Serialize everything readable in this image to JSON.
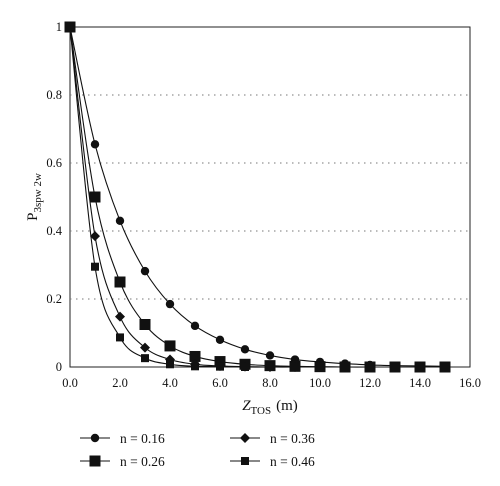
{
  "chart_data": {
    "type": "line",
    "title": "",
    "xlabel": {
      "main": "Z",
      "sub": "TOS",
      "unit": "(m)"
    },
    "ylabel": {
      "main": "P",
      "sub": "3spw 2w"
    },
    "xlim": [
      0,
      16
    ],
    "ylim": [
      0,
      1
    ],
    "x_ticks": [
      0,
      2,
      4,
      6,
      8,
      10,
      12,
      14,
      16
    ],
    "x_tick_labels": [
      "0.0",
      "2.0",
      "4.0",
      "6.0",
      "8.0",
      "10.0",
      "12.0",
      "14.0",
      "16.0"
    ],
    "y_ticks": [
      0,
      0.2,
      0.4,
      0.6,
      0.8,
      1
    ],
    "y_tick_labels": [
      "0",
      "0.2",
      "0.4",
      "0.6",
      "0.8",
      "1"
    ],
    "grid": "horizontal dotted",
    "legend_placement": "bottom",
    "series": [
      {
        "name": "n = 0.16",
        "marker": "circle",
        "x": [
          0,
          1,
          2,
          3,
          4,
          5,
          6,
          7,
          8,
          9,
          10,
          11,
          12,
          13,
          14,
          15
        ],
        "y": [
          1,
          0.655,
          0.43,
          0.282,
          0.185,
          0.121,
          0.08,
          0.052,
          0.034,
          0.022,
          0.015,
          0.01,
          0.006,
          0.004,
          0.003,
          0.002
        ]
      },
      {
        "name": "n = 0.26",
        "marker": "square-large",
        "x": [
          0,
          1,
          2,
          3,
          4,
          5,
          6,
          7,
          8,
          9,
          10,
          11,
          12,
          13,
          14,
          15
        ],
        "y": [
          1,
          0.5,
          0.25,
          0.125,
          0.062,
          0.031,
          0.016,
          0.008,
          0.004,
          0.002,
          0.001,
          0,
          0,
          0,
          0,
          0
        ]
      },
      {
        "name": "n = 0.36",
        "marker": "diamond",
        "x": [
          0,
          1,
          2,
          3,
          4,
          5,
          6,
          7,
          8,
          9,
          10,
          11,
          12,
          13,
          14,
          15
        ],
        "y": [
          1,
          0.385,
          0.148,
          0.057,
          0.022,
          0.008,
          0.003,
          0.001,
          0,
          0,
          0,
          0,
          0,
          0,
          0,
          0
        ]
      },
      {
        "name": "n = 0.46",
        "marker": "square-small",
        "x": [
          0,
          1,
          2,
          3,
          4,
          5,
          6,
          7,
          8,
          9,
          10,
          11,
          12,
          13,
          14,
          15
        ],
        "y": [
          1,
          0.295,
          0.087,
          0.026,
          0.008,
          0.002,
          0.001,
          0,
          0,
          0,
          0,
          0,
          0,
          0,
          0,
          0
        ]
      }
    ]
  }
}
